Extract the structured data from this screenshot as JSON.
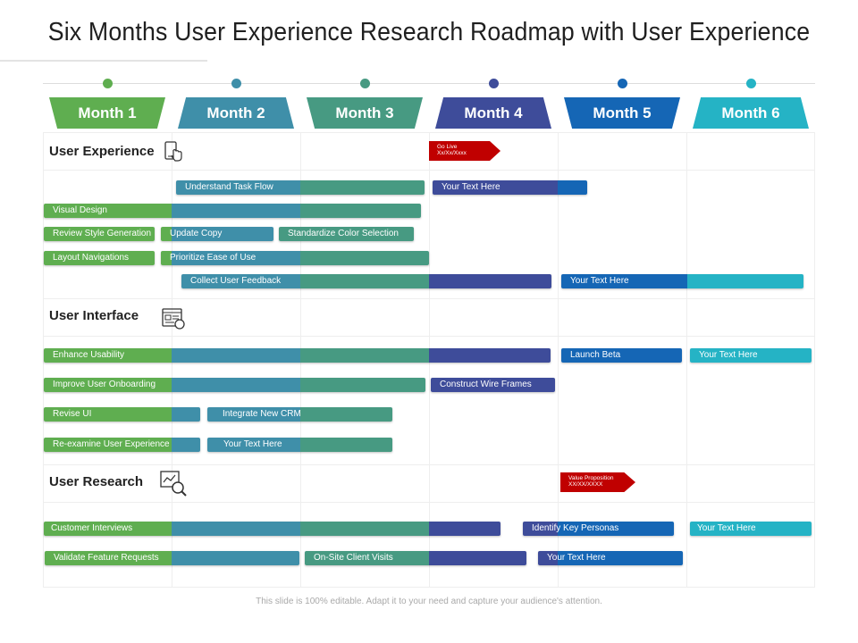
{
  "title": "Six Months User Experience Research Roadmap with User Experience",
  "footer": "This slide is 100% editable. Adapt it to your need and capture your audience's attention.",
  "colors": {
    "m1": "#5fae50",
    "m2": "#3f8fa9",
    "m3": "#479a82",
    "m4": "#3e4c9a",
    "m5": "#1566b5",
    "m6": "#25b3c5",
    "flag": "#c00000"
  },
  "months": [
    "Month 1",
    "Month 2",
    "Month 3",
    "Month 4",
    "Month 5",
    "Month 6"
  ],
  "sections": {
    "user_experience": "User Experience",
    "user_interface": "User Interface",
    "user_research": "User Research"
  },
  "milestones": {
    "go_live_line1": "Go Live",
    "go_live_line2": "Xx/Xx/Xxxx",
    "value_prop_line1": "Value Proposition",
    "value_prop_line2": "XX/XX/XXXX"
  },
  "tasks": {
    "understand_task_flow": "Understand Task Flow",
    "ux_your_text_1": "Your Text Here",
    "visual_design": "Visual Design",
    "review_style_generation": "Review Style Generation",
    "update_copy": "Update Copy",
    "standardize_color_selection": "Standardize Color Selection",
    "layout_navigations": "Layout Navigations",
    "prioritize_ease_of_use": "Prioritize Ease of Use",
    "collect_user_feedback": "Collect User Feedback",
    "ux_your_text_2": "Your Text Here",
    "enhance_usability": "Enhance Usability",
    "launch_beta": "Launch Beta",
    "ui_your_text_1": "Your Text Here",
    "improve_user_onboarding": "Improve User Onboarding",
    "construct_wire_frames": "Construct Wire Frames",
    "revise_ui": "Revise UI",
    "integrate_new_crm": "Integrate New CRM",
    "reexamine_user_experience": "Re-examine User Experience",
    "ui_your_text_2": "Your Text Here",
    "customer_interviews": "Customer Interviews",
    "identify_key_personas": "Identify Key Personas",
    "ur_your_text_1": "Your Text Here",
    "validate_feature_requests": "Validate Feature Requests",
    "onsite_client_visits": "On-Site Client Visits",
    "ur_your_text_2": "Your Text Here"
  }
}
